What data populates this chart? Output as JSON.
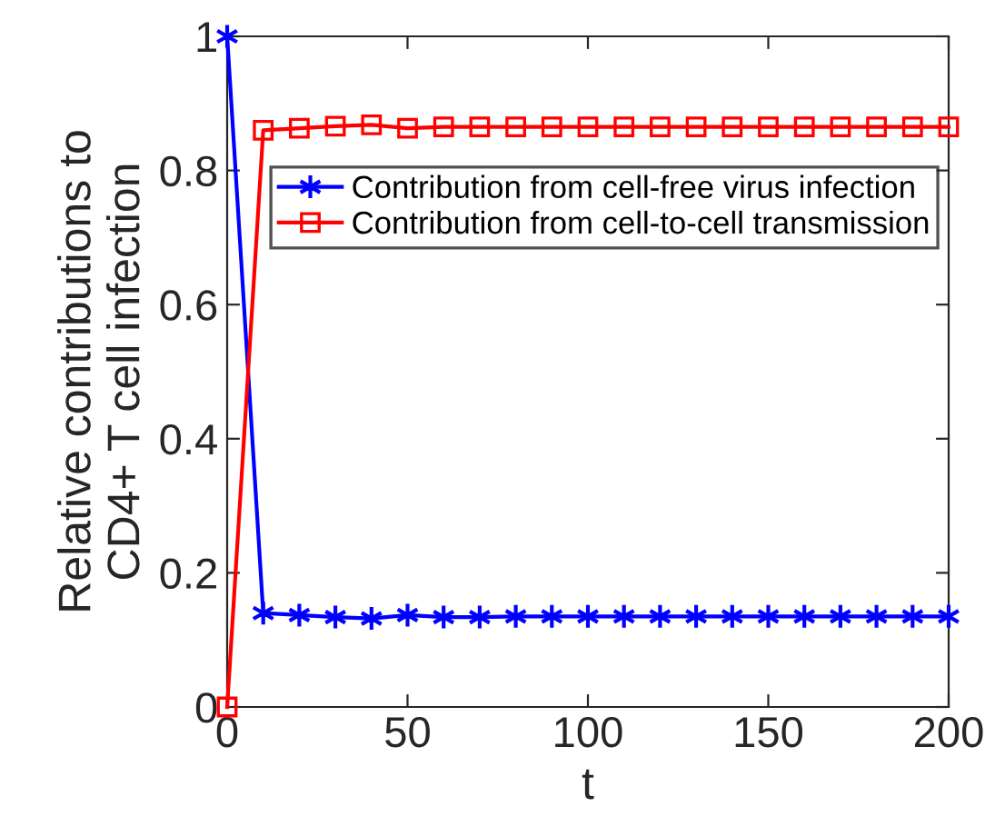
{
  "chart_data": {
    "type": "line",
    "xlabel": "t",
    "ylabel": "Relative contributions to\nCD4+ T cell infection",
    "x": [
      0,
      10,
      20,
      30,
      40,
      50,
      60,
      70,
      80,
      90,
      100,
      110,
      120,
      130,
      140,
      150,
      160,
      170,
      180,
      190,
      200
    ],
    "series": [
      {
        "name": "Contribution from cell-free virus infection",
        "color": "#0000ff",
        "marker": "cross",
        "values": [
          1,
          0.14,
          0.137,
          0.134,
          0.132,
          0.137,
          0.134,
          0.134,
          0.135,
          0.135,
          0.135,
          0.135,
          0.135,
          0.135,
          0.135,
          0.135,
          0.135,
          0.135,
          0.135,
          0.135,
          0.135
        ]
      },
      {
        "name": "Contribution from cell-to-cell transmission",
        "color": "#ff0000",
        "marker": "square",
        "values": [
          0,
          0.86,
          0.863,
          0.866,
          0.868,
          0.863,
          0.865,
          0.865,
          0.865,
          0.865,
          0.865,
          0.865,
          0.865,
          0.865,
          0.865,
          0.865,
          0.865,
          0.865,
          0.865,
          0.865,
          0.865
        ]
      }
    ],
    "xlim": [
      0,
      200
    ],
    "xticks": [
      0,
      50,
      100,
      150,
      200
    ],
    "ylim": [
      0,
      1
    ],
    "yticks": [
      0,
      0.2,
      0.4,
      0.6,
      0.8,
      1
    ],
    "grid": false,
    "legend": "top right",
    "line_style": "solid"
  }
}
